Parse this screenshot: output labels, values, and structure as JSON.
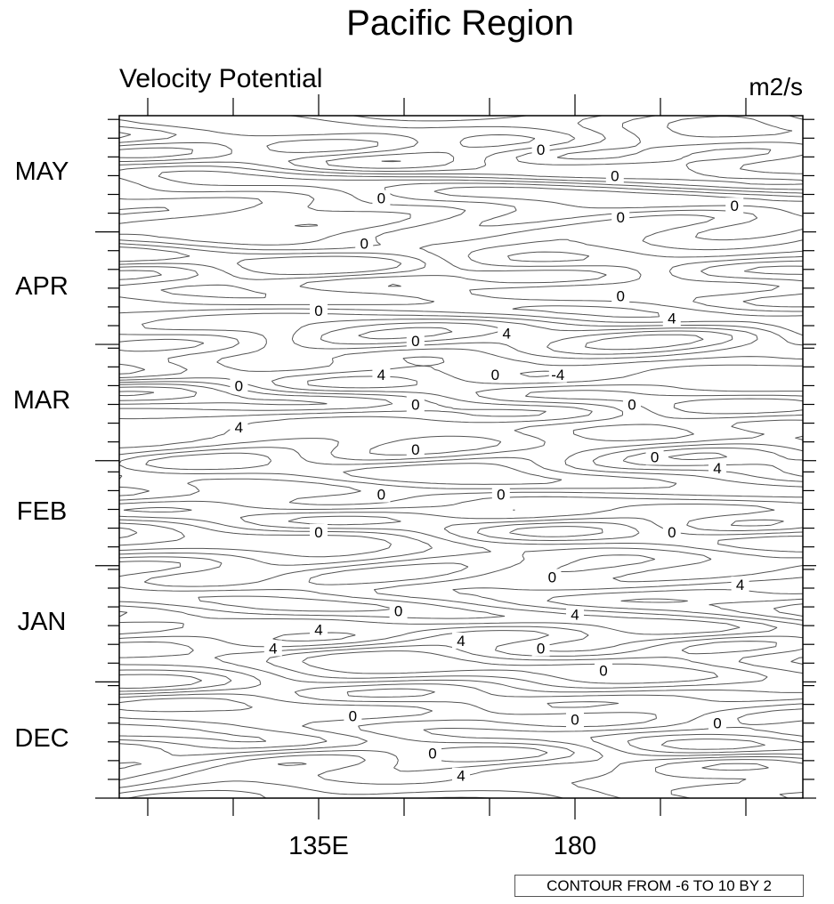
{
  "chart_data": {
    "type": "contour",
    "title": "Pacific Region",
    "left_string": "Velocity Potential",
    "right_string": "m2/s",
    "info_label": "CONTOUR FROM -6 TO 10 BY 2",
    "contour_levels": {
      "min": -6,
      "max": 10,
      "step": 2
    },
    "xaxis": {
      "range_lon": [
        100,
        220
      ],
      "major_ticks": [
        105,
        120,
        135,
        150,
        165,
        180,
        195,
        210
      ],
      "tick_labels": [
        {
          "lon": 135,
          "text": "135E"
        },
        {
          "lon": 180,
          "text": "180"
        }
      ]
    },
    "yaxis": {
      "range_days_from_dec1": [
        0,
        182
      ],
      "months": [
        {
          "name": "DEC",
          "days": 31
        },
        {
          "name": "JAN",
          "days": 31
        },
        {
          "name": "FEB",
          "days": 28
        },
        {
          "name": "MAR",
          "days": 31
        },
        {
          "name": "APR",
          "days": 30
        },
        {
          "name": "MAY",
          "days": 31
        }
      ],
      "minor_tick_every_days": 5
    },
    "contour_labels": [
      {
        "lon": 174,
        "day": 173,
        "value": "0"
      },
      {
        "lon": 187,
        "day": 166,
        "value": "0"
      },
      {
        "lon": 146,
        "day": 160,
        "value": "0"
      },
      {
        "lon": 208,
        "day": 158,
        "value": "0"
      },
      {
        "lon": 188,
        "day": 155,
        "value": "0"
      },
      {
        "lon": 143,
        "day": 148,
        "value": "0"
      },
      {
        "lon": 188,
        "day": 134,
        "value": "0"
      },
      {
        "lon": 135,
        "day": 130,
        "value": "0"
      },
      {
        "lon": 197,
        "day": 128,
        "value": "4"
      },
      {
        "lon": 152,
        "day": 122,
        "value": "0"
      },
      {
        "lon": 168,
        "day": 124,
        "value": "4"
      },
      {
        "lon": 146,
        "day": 113,
        "value": "4"
      },
      {
        "lon": 166,
        "day": 113,
        "value": "0"
      },
      {
        "lon": 177,
        "day": 113,
        "value": "-4"
      },
      {
        "lon": 121,
        "day": 110,
        "value": "0"
      },
      {
        "lon": 152,
        "day": 105,
        "value": "0"
      },
      {
        "lon": 190,
        "day": 105,
        "value": "0"
      },
      {
        "lon": 121,
        "day": 99,
        "value": "4"
      },
      {
        "lon": 152,
        "day": 93,
        "value": "0"
      },
      {
        "lon": 194,
        "day": 91,
        "value": "0"
      },
      {
        "lon": 205,
        "day": 88,
        "value": "4"
      },
      {
        "lon": 146,
        "day": 81,
        "value": "0"
      },
      {
        "lon": 167,
        "day": 81,
        "value": "0"
      },
      {
        "lon": 135,
        "day": 71,
        "value": "0"
      },
      {
        "lon": 197,
        "day": 71,
        "value": "0"
      },
      {
        "lon": 176,
        "day": 59,
        "value": "0"
      },
      {
        "lon": 209,
        "day": 57,
        "value": "4"
      },
      {
        "lon": 149,
        "day": 50,
        "value": "0"
      },
      {
        "lon": 180,
        "day": 49,
        "value": "4"
      },
      {
        "lon": 135,
        "day": 45,
        "value": "4"
      },
      {
        "lon": 127,
        "day": 40,
        "value": "4"
      },
      {
        "lon": 160,
        "day": 42,
        "value": "4"
      },
      {
        "lon": 174,
        "day": 40,
        "value": "0"
      },
      {
        "lon": 185,
        "day": 34,
        "value": "0"
      },
      {
        "lon": 141,
        "day": 22,
        "value": "0"
      },
      {
        "lon": 180,
        "day": 21,
        "value": "0"
      },
      {
        "lon": 205,
        "day": 20,
        "value": "0"
      },
      {
        "lon": 155,
        "day": 12,
        "value": "0"
      },
      {
        "lon": 160,
        "day": 6,
        "value": "4"
      }
    ]
  }
}
